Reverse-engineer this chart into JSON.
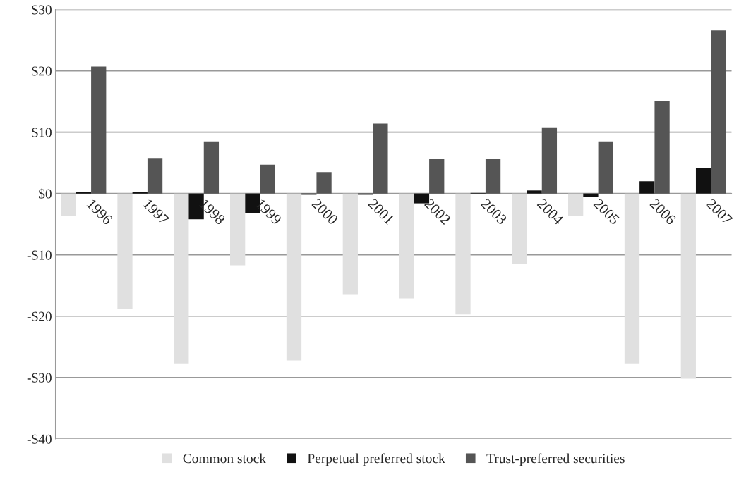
{
  "chart_data": {
    "type": "bar",
    "categories": [
      "1996",
      "1997",
      "1998",
      "1999",
      "2000",
      "2001",
      "2002",
      "2003",
      "2004",
      "2005",
      "2006",
      "2007"
    ],
    "series": [
      {
        "name": "Common stock",
        "color": "#e0e0e0",
        "values": [
          -3.7,
          -18.8,
          -27.7,
          -11.7,
          -27.2,
          -16.4,
          -17.1,
          -19.7,
          -11.5,
          -3.7,
          -27.7,
          -30.2
        ]
      },
      {
        "name": "Perpetual preferred stock",
        "color": "#111111",
        "values": [
          0.2,
          0.2,
          -4.2,
          -3.2,
          -0.2,
          -0.2,
          -1.6,
          0.1,
          0.5,
          -0.5,
          2.0,
          4.1
        ]
      },
      {
        "name": "Trust-preferred securities",
        "color": "#555555",
        "values": [
          20.7,
          5.8,
          8.5,
          4.7,
          3.5,
          11.4,
          5.7,
          5.7,
          10.8,
          8.5,
          15.1,
          26.6
        ]
      }
    ],
    "ylim": [
      -40,
      30
    ],
    "yticks": [
      {
        "value": -40,
        "label": "-$40"
      },
      {
        "value": -30,
        "label": "-$30"
      },
      {
        "value": -20,
        "label": "-$20"
      },
      {
        "value": -10,
        "label": "-$10"
      },
      {
        "value": 0,
        "label": "$0"
      },
      {
        "value": 10,
        "label": "$10"
      },
      {
        "value": 20,
        "label": "$20"
      },
      {
        "value": 30,
        "label": "$30"
      }
    ],
    "grid": "y",
    "legend": "bottom"
  }
}
